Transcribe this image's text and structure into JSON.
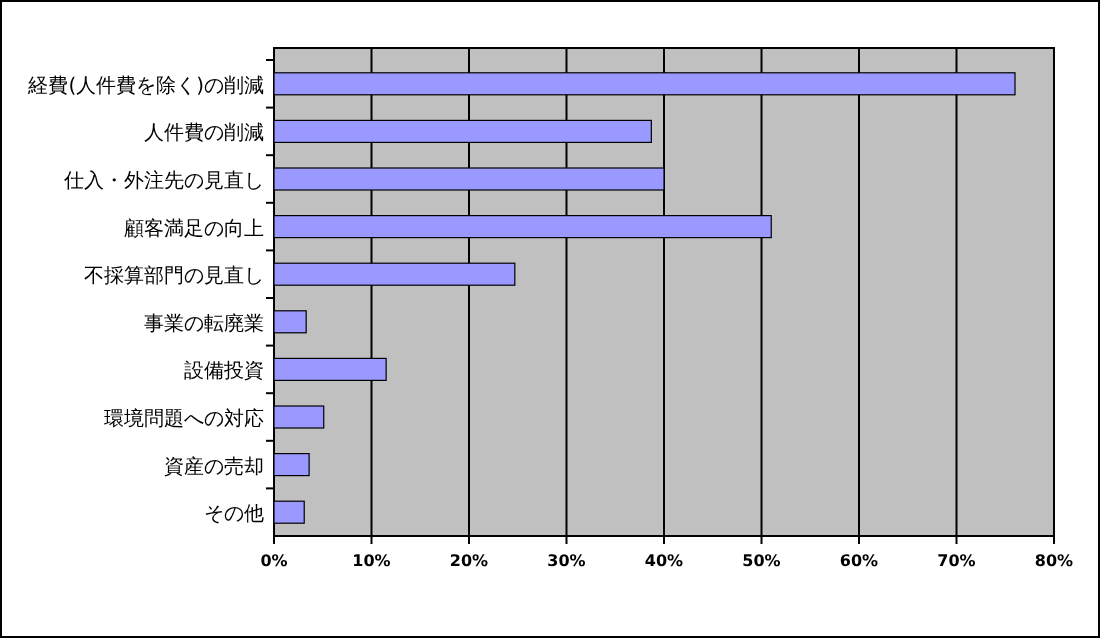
{
  "chart_data": {
    "type": "bar",
    "orientation": "horizontal",
    "categories": [
      "経費(人件費を除く)の削減",
      "人件費の削減",
      "仕入・外注先の見直し",
      "顧客満足の向上",
      "不採算部門の見直し",
      "事業の転廃業",
      "設備投資",
      "環境問題への対応",
      "資産の売却",
      "その他"
    ],
    "values": [
      76,
      38.7,
      40,
      51,
      24.7,
      3.3,
      11.5,
      5.1,
      3.6,
      3.1
    ],
    "color": "#9999ff",
    "xlim": [
      0,
      80
    ],
    "xticks": [
      {
        "value": 0,
        "label": "0%"
      },
      {
        "value": 10,
        "label": "10%"
      },
      {
        "value": 20,
        "label": "20%"
      },
      {
        "value": 30,
        "label": "30%"
      },
      {
        "value": 40,
        "label": "40%"
      },
      {
        "value": 50,
        "label": "50%"
      },
      {
        "value": 60,
        "label": "60%"
      },
      {
        "value": 70,
        "label": "70%"
      },
      {
        "value": 80,
        "label": "80%"
      }
    ],
    "grid": "x"
  }
}
